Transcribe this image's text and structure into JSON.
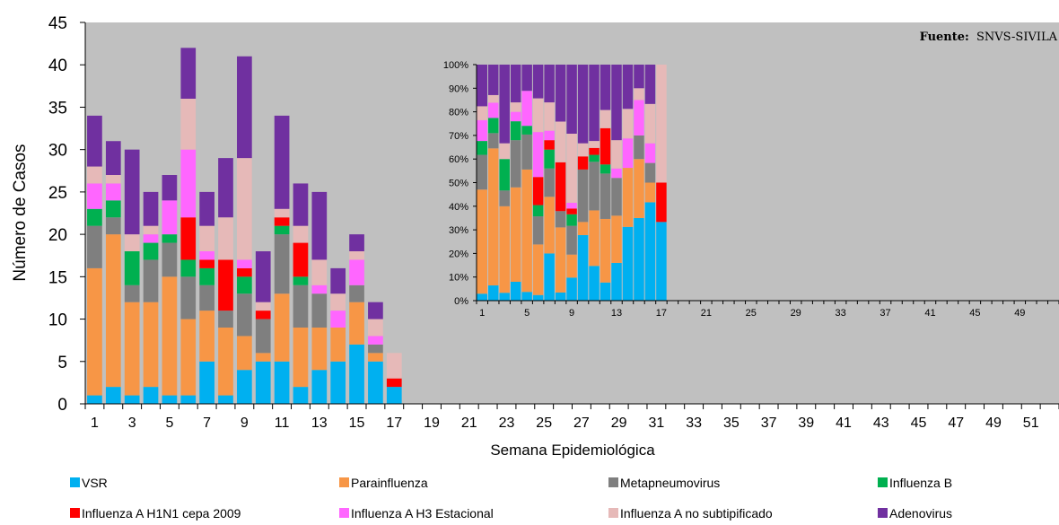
{
  "chart_data": [
    {
      "type": "bar",
      "stacked": true,
      "title": "",
      "source_label": "Fuente:",
      "source_value": "SNVS-SIVILA",
      "xlabel": "Semana Epidemiológica",
      "ylabel": "Número de Casos",
      "ylim": [
        0,
        45
      ],
      "yticks": [
        "0",
        "5",
        "10",
        "15",
        "20",
        "25",
        "30",
        "35",
        "40",
        "45"
      ],
      "weeks": 52,
      "xtick_labels": [
        "1",
        "3",
        "5",
        "7",
        "9",
        "11",
        "13",
        "15",
        "17",
        "19",
        "21",
        "23",
        "25",
        "27",
        "29",
        "31",
        "33",
        "35",
        "37",
        "39",
        "41",
        "43",
        "45",
        "47",
        "49",
        "51"
      ],
      "grid": false,
      "legend_position": "bottom",
      "series": [
        {
          "name": "VSR",
          "color": "#00B0F0",
          "values": [
            1,
            2,
            1,
            2,
            1,
            1,
            5,
            1,
            4,
            5,
            5,
            2,
            4,
            5,
            7,
            5,
            2
          ]
        },
        {
          "name": "Parainfluenza",
          "color": "#F79646",
          "values": [
            15,
            18,
            11,
            10,
            14,
            9,
            6,
            8,
            4,
            1,
            8,
            7,
            5,
            4,
            5,
            1,
            0
          ]
        },
        {
          "name": "Metapneumovirus",
          "color": "#7F7F7F",
          "values": [
            5,
            2,
            2,
            5,
            4,
            5,
            3,
            2,
            5,
            4,
            7,
            5,
            4,
            0,
            2,
            1,
            0
          ]
        },
        {
          "name": "Influenza B",
          "color": "#00B050",
          "values": [
            2,
            2,
            4,
            2,
            1,
            2,
            2,
            0,
            2,
            0,
            1,
            1,
            0,
            0,
            0,
            0,
            0
          ]
        },
        {
          "name": "Influenza A H1N1 cepa 2009",
          "color": "#FF0000",
          "values": [
            0,
            0,
            0,
            0,
            0,
            5,
            1,
            6,
            1,
            1,
            1,
            4,
            0,
            0,
            0,
            0,
            1
          ]
        },
        {
          "name": "Influenza A H3 Estacional",
          "color": "#FF66FF",
          "values": [
            3,
            2,
            0,
            1,
            4,
            8,
            1,
            0,
            1,
            0,
            0,
            0,
            1,
            2,
            3,
            1,
            0
          ]
        },
        {
          "name": "Influenza A no subtipificado",
          "color": "#E6B9B8",
          "values": [
            2,
            1,
            2,
            1,
            0,
            6,
            3,
            5,
            12,
            1,
            1,
            2,
            3,
            2,
            1,
            2,
            3
          ]
        },
        {
          "name": "Adenovirus",
          "color": "#7030A0",
          "values": [
            6,
            4,
            10,
            4,
            3,
            6,
            4,
            7,
            12,
            6,
            11,
            5,
            8,
            3,
            2,
            2,
            0
          ]
        }
      ]
    },
    {
      "type": "bar",
      "stacked": true,
      "percent": true,
      "title": "",
      "xlabel": "",
      "ylabel": "",
      "ylim": [
        0,
        100
      ],
      "yticks": [
        "0%",
        "10%",
        "20%",
        "30%",
        "40%",
        "50%",
        "60%",
        "70%",
        "80%",
        "90%",
        "100%"
      ],
      "weeks": 52,
      "xtick_labels": [
        "1",
        "5",
        "9",
        "13",
        "17",
        "21",
        "25",
        "29",
        "33",
        "37",
        "41",
        "45",
        "49"
      ],
      "legend_position": "none"
    }
  ],
  "legend": {
    "items": [
      {
        "label": "VSR",
        "color": "#00B0F0"
      },
      {
        "label": "Parainfluenza",
        "color": "#F79646"
      },
      {
        "label": "Metapneumovirus",
        "color": "#7F7F7F"
      },
      {
        "label": "Influenza B",
        "color": "#00B050"
      },
      {
        "label": "Influenza A H1N1 cepa 2009",
        "color": "#FF0000"
      },
      {
        "label": "Influenza A H3 Estacional",
        "color": "#FF66FF"
      },
      {
        "label": "Influenza A no subtipificado",
        "color": "#E6B9B8"
      },
      {
        "label": "Adenovirus",
        "color": "#7030A0"
      }
    ]
  },
  "colors": {
    "plot_background": "#C0C0C0"
  }
}
